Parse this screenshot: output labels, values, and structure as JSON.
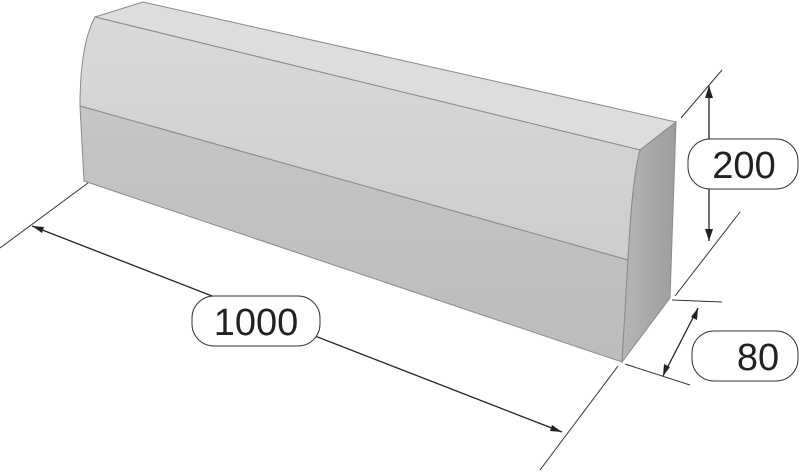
{
  "dimensions": {
    "length": "1000",
    "height": "200",
    "width": "80"
  },
  "colors": {
    "top_face": "#dadada",
    "upper_front_face": "#d2d2d2",
    "lower_front_face": "#c3c3c3",
    "end_face": "#a9a9a9",
    "bevel_face": "#e4e4e4",
    "lines": "#222222",
    "background": "#ffffff"
  }
}
